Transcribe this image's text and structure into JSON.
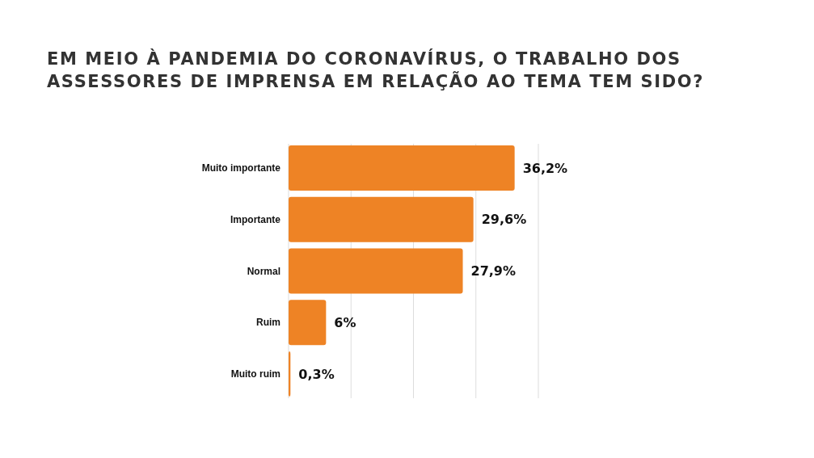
{
  "chart_data": {
    "type": "bar",
    "orientation": "horizontal",
    "title": "EM MEIO À PANDEMIA DO CORONAVÍRUS, O TRABALHO DOS ASSESSORES DE IMPRENSA EM RELAÇÃO AO TEMA TEM SIDO?",
    "categories": [
      "Muito importante",
      "Importante",
      "Normal",
      "Ruim",
      "Muito ruim"
    ],
    "values": [
      36.2,
      29.6,
      27.9,
      6,
      0.3
    ],
    "value_labels": [
      "36,2%",
      "29,6%",
      "27,9%",
      "6%",
      "0,3%"
    ],
    "color": "#ee8325",
    "xlim": [
      0,
      40
    ],
    "xticks": [
      {
        "value": 0,
        "label": null
      },
      {
        "value": 10,
        "label": null
      },
      {
        "value": 20,
        "label": null
      },
      {
        "value": 30,
        "label": null
      },
      {
        "value": 40,
        "label": null
      }
    ],
    "tick_labels": "y",
    "grid": "x"
  }
}
